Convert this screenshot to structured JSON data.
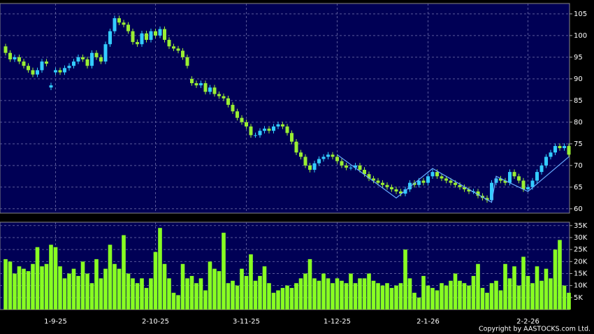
{
  "chart_data": {
    "type": "candlestick",
    "categories": [
      null,
      null,
      null,
      null,
      null,
      null,
      null,
      null,
      null,
      null,
      null,
      "1-9-25",
      null,
      null,
      null,
      null,
      null,
      null,
      null,
      null,
      null,
      null,
      null,
      null,
      null,
      null,
      null,
      null,
      null,
      null,
      null,
      null,
      null,
      "2-10-25",
      null,
      null,
      null,
      null,
      null,
      null,
      null,
      null,
      null,
      null,
      null,
      null,
      null,
      null,
      null,
      null,
      null,
      null,
      null,
      "3-11-25",
      null,
      null,
      null,
      null,
      null,
      null,
      null,
      null,
      null,
      null,
      null,
      null,
      null,
      null,
      null,
      null,
      null,
      null,
      null,
      "1-12-25",
      null,
      null,
      null,
      null,
      null,
      null,
      null,
      null,
      null,
      null,
      null,
      null,
      null,
      null,
      null,
      null,
      null,
      null,
      null,
      "2-1-26",
      null,
      null,
      null,
      null,
      null,
      null,
      null,
      null,
      null,
      null,
      null,
      null,
      null,
      null,
      null,
      null,
      null,
      null,
      null,
      null,
      null,
      "2-2-26",
      null,
      null,
      null,
      null,
      null,
      null,
      null,
      null,
      null
    ],
    "ohlc": [
      [
        97.5,
        98.1,
        95.4,
        96
      ],
      [
        96,
        96.6,
        93.9,
        94.5
      ],
      [
        94.5,
        95.6,
        93.9,
        95
      ],
      [
        95,
        95.6,
        93.4,
        94
      ],
      [
        94,
        94.6,
        92.4,
        93
      ],
      [
        93,
        93.6,
        91.4,
        92
      ],
      [
        92,
        92.6,
        90.4,
        91
      ],
      [
        91,
        92.6,
        90.4,
        92
      ],
      [
        92,
        94.6,
        91.4,
        94
      ],
      [
        94,
        94.6,
        92.9,
        93.5
      ],
      [
        88,
        89.1,
        87.4,
        88.5
      ],
      [
        91.5,
        92.6,
        90.9,
        92
      ],
      [
        92,
        92.6,
        90.9,
        91.5
      ],
      [
        91.5,
        93.1,
        90.9,
        92.5
      ],
      [
        92.5,
        93.6,
        91.9,
        93
      ],
      [
        93,
        94.6,
        92.4,
        94
      ],
      [
        94,
        95.6,
        93.4,
        95
      ],
      [
        95,
        95.6,
        93.9,
        94.5
      ],
      [
        94.5,
        95.1,
        92.4,
        93
      ],
      [
        93,
        96.6,
        92.4,
        96
      ],
      [
        96,
        96.6,
        94.4,
        95
      ],
      [
        95,
        95.6,
        93.4,
        94
      ],
      [
        94,
        98.6,
        93.4,
        98
      ],
      [
        98,
        101.6,
        97.4,
        101
      ],
      [
        101,
        104.6,
        100.4,
        104
      ],
      [
        104,
        104.6,
        102.4,
        103
      ],
      [
        103,
        103.6,
        101.9,
        102.5
      ],
      [
        102.5,
        103.1,
        100.4,
        101
      ],
      [
        101,
        101.6,
        97.9,
        98.5
      ],
      [
        98.5,
        99.1,
        97.4,
        98
      ],
      [
        98,
        101.1,
        97.4,
        100.5
      ],
      [
        100.5,
        101.1,
        98.4,
        99
      ],
      [
        99,
        101.6,
        98.4,
        101
      ],
      [
        101,
        101.6,
        99.4,
        100
      ],
      [
        100,
        102.1,
        99.4,
        101.5
      ],
      [
        101.5,
        102.1,
        98.4,
        99
      ],
      [
        99,
        99.6,
        96.9,
        97.5
      ],
      [
        97.5,
        98.1,
        96.4,
        97
      ],
      [
        97,
        97.6,
        95.9,
        96.5
      ],
      [
        96.5,
        97.1,
        94.4,
        95
      ],
      [
        95,
        95.6,
        92.4,
        93
      ],
      [
        90,
        90.6,
        88.4,
        89
      ],
      [
        89,
        89.6,
        87.9,
        88.5
      ],
      [
        88.5,
        89.6,
        87.9,
        89
      ],
      [
        89,
        89.6,
        86.4,
        87
      ],
      [
        87,
        88.6,
        86.4,
        88
      ],
      [
        88,
        88.6,
        85.9,
        86.5
      ],
      [
        86.5,
        87.1,
        85.4,
        86
      ],
      [
        86,
        86.6,
        84.9,
        85.5
      ],
      [
        85.5,
        86.1,
        83.4,
        84
      ],
      [
        84,
        84.6,
        81.9,
        82.5
      ],
      [
        82.5,
        83.1,
        80.4,
        81
      ],
      [
        81,
        81.6,
        79.4,
        80
      ],
      [
        80,
        80.6,
        78.4,
        79
      ],
      [
        79,
        79.6,
        76.4,
        77
      ],
      [
        77,
        77.6,
        76.4,
        77
      ],
      [
        77,
        78.6,
        76.4,
        78
      ],
      [
        78,
        79.1,
        77.4,
        78.5
      ],
      [
        78.5,
        79.1,
        77.4,
        78
      ],
      [
        78,
        79.6,
        77.4,
        79
      ],
      [
        79,
        80.1,
        78.4,
        79.5
      ],
      [
        79.5,
        80.1,
        78.4,
        79
      ],
      [
        79,
        79.6,
        76.9,
        77.5
      ],
      [
        77.5,
        78.1,
        74.9,
        75.5
      ],
      [
        75.5,
        76.1,
        72.4,
        73
      ],
      [
        73,
        73.6,
        71.4,
        72
      ],
      [
        72,
        72.6,
        69.4,
        70
      ],
      [
        70,
        70.6,
        68.4,
        69
      ],
      [
        69,
        71.1,
        68.4,
        70.5
      ],
      [
        70.5,
        72.1,
        69.9,
        71.5
      ],
      [
        71.5,
        72.6,
        70.9,
        72
      ],
      [
        72,
        73.1,
        71.4,
        72.5
      ],
      [
        72.5,
        73.1,
        71.4,
        72
      ],
      [
        72,
        72.6,
        70.4,
        71
      ],
      [
        71,
        71.6,
        69.4,
        70
      ],
      [
        70,
        70.6,
        68.9,
        69.5
      ],
      [
        69.5,
        70.1,
        68.9,
        69.5
      ],
      [
        69.5,
        70.6,
        68.9,
        70
      ],
      [
        70,
        70.6,
        68.4,
        69
      ],
      [
        69,
        69.6,
        67.4,
        68
      ],
      [
        68,
        68.6,
        66.4,
        67
      ],
      [
        67,
        67.6,
        65.9,
        66.5
      ],
      [
        66.5,
        67.1,
        65.4,
        66
      ],
      [
        66,
        66.6,
        64.9,
        65.5
      ],
      [
        65.5,
        66.1,
        64.4,
        65
      ],
      [
        65,
        65.6,
        63.9,
        64.5
      ],
      [
        64.5,
        65.1,
        63.4,
        64
      ],
      [
        64,
        64.6,
        62.9,
        63.5
      ],
      [
        63.5,
        65.1,
        62.9,
        64.5
      ],
      [
        64.5,
        66.6,
        63.9,
        66
      ],
      [
        66,
        66.6,
        64.9,
        65.5
      ],
      [
        65.5,
        67.1,
        64.9,
        66.5
      ],
      [
        66.5,
        67.1,
        65.4,
        66
      ],
      [
        66,
        68.1,
        65.4,
        67.5
      ],
      [
        67.5,
        69.1,
        66.9,
        68.5
      ],
      [
        68.5,
        69.1,
        66.9,
        67.5
      ],
      [
        67.5,
        68.1,
        66.4,
        67
      ],
      [
        67,
        67.6,
        65.9,
        66.5
      ],
      [
        66.5,
        67.1,
        65.4,
        66
      ],
      [
        66,
        66.6,
        64.9,
        65.5
      ],
      [
        65.5,
        66.1,
        64.4,
        65
      ],
      [
        65,
        65.6,
        63.9,
        64.5
      ],
      [
        64.5,
        65.1,
        63.4,
        64
      ],
      [
        64,
        64.6,
        63.4,
        64
      ],
      [
        64,
        64.6,
        62.4,
        63
      ],
      [
        63,
        63.6,
        61.9,
        62.5
      ],
      [
        62.5,
        63.1,
        61.4,
        62
      ],
      [
        62,
        66.6,
        61.4,
        66
      ],
      [
        66,
        67.6,
        65.4,
        67
      ],
      [
        67,
        67.6,
        65.9,
        66.5
      ],
      [
        66.5,
        67.1,
        65.4,
        66
      ],
      [
        66,
        69.1,
        65.4,
        68.5
      ],
      [
        68.5,
        69.1,
        66.9,
        67.5
      ],
      [
        67.5,
        68.1,
        65.9,
        66.5
      ],
      [
        66.5,
        67.1,
        63.9,
        64.5
      ],
      [
        64.5,
        65.6,
        63.9,
        65
      ],
      [
        65,
        67.1,
        64.4,
        66.5
      ],
      [
        66.5,
        69.1,
        65.9,
        68.5
      ],
      [
        68.5,
        70.6,
        67.9,
        70
      ],
      [
        70,
        72.6,
        69.4,
        72
      ],
      [
        72,
        73.6,
        71.4,
        73
      ],
      [
        73,
        75.1,
        72.4,
        74.5
      ],
      [
        74.5,
        75.1,
        73.4,
        74
      ],
      [
        74,
        75.1,
        73.4,
        74.5
      ],
      [
        74.5,
        75.1,
        71.9,
        72.5
      ]
    ],
    "up_color": "#33ccff",
    "down_color": "#99ee33",
    "ylim": [
      59,
      107.4
    ],
    "yticks": [
      60,
      65,
      70,
      75,
      80,
      85,
      90,
      95,
      100,
      105
    ],
    "grid": true,
    "zigzag": {
      "color": "#66aaff",
      "x": [
        73,
        86,
        94,
        107,
        108,
        115,
        124
      ],
      "values": [
        72.5,
        62.5,
        69.3,
        61.5,
        67.5,
        64,
        72
      ]
    },
    "volume": {
      "color": "#88ff22",
      "values": [
        21000,
        20000,
        15000,
        18000,
        17000,
        16000,
        19000,
        26000,
        18000,
        19000,
        27000,
        26000,
        18000,
        13000,
        15000,
        17000,
        14000,
        20000,
        15000,
        11000,
        21000,
        13000,
        17000,
        27000,
        19000,
        17000,
        31000,
        15000,
        13000,
        11000,
        13000,
        9000,
        13000,
        24000,
        34000,
        19000,
        13000,
        7000,
        6000,
        19000,
        13000,
        14000,
        11000,
        13000,
        8000,
        20000,
        17000,
        16000,
        32000,
        11000,
        12000,
        10000,
        17000,
        14000,
        23000,
        12000,
        14000,
        18000,
        11000,
        7000,
        8000,
        9000,
        10000,
        9000,
        11000,
        13000,
        15000,
        21000,
        13000,
        12000,
        15000,
        13000,
        11000,
        13000,
        12000,
        11000,
        15000,
        11000,
        13000,
        13000,
        15000,
        12000,
        11000,
        10000,
        11000,
        9000,
        10000,
        11000,
        25000,
        13000,
        7000,
        5000,
        14000,
        10000,
        9000,
        8000,
        11000,
        10000,
        12000,
        15000,
        12000,
        11000,
        10000,
        14000,
        19000,
        9000,
        7000,
        11000,
        12000,
        8000,
        19000,
        13000,
        18000,
        10000,
        22000,
        14000,
        11000,
        18000,
        12000,
        17000,
        13000,
        25000,
        29000,
        10000,
        7000
      ],
      "ylim": [
        0,
        36400
      ],
      "yticks": [
        {
          "value": 5000,
          "label": "5K"
        },
        {
          "value": 10000,
          "label": "10K"
        },
        {
          "value": 15000,
          "label": "15K"
        },
        {
          "value": 20000,
          "label": "20K"
        },
        {
          "value": 25000,
          "label": "25K"
        },
        {
          "value": 30000,
          "label": "30K"
        },
        {
          "value": 35000,
          "label": "35K"
        }
      ]
    },
    "footer": "Copyright by AASTOCKS.com Ltd."
  }
}
